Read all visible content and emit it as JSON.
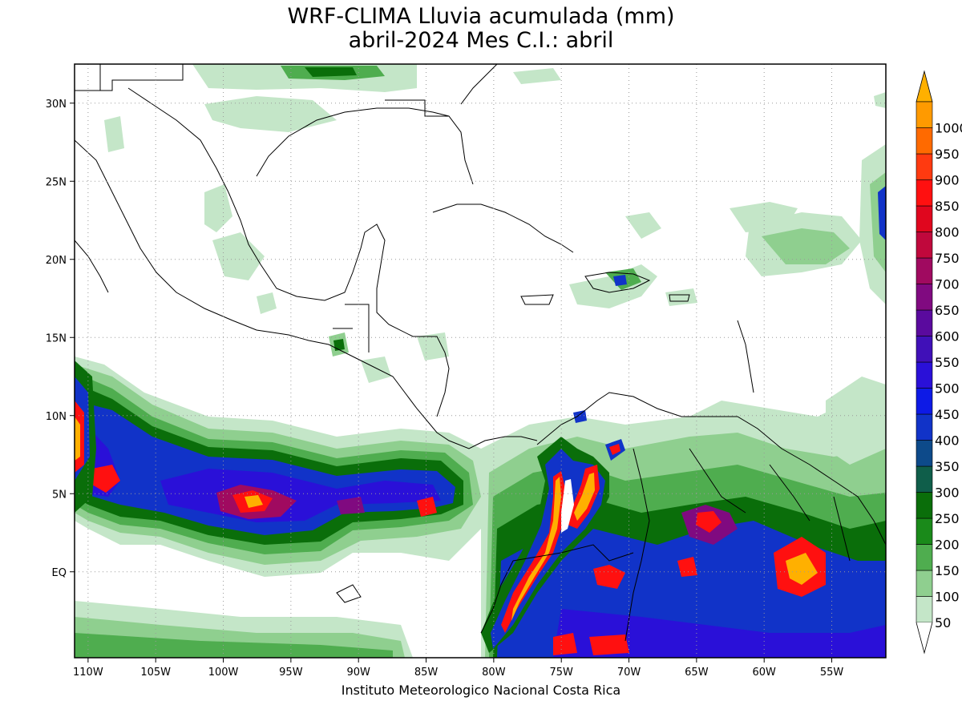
{
  "title": {
    "line1": "WRF-CLIMA Lluvia acumulada (mm)",
    "line2": "abril-2024 Mes C.I.: abril"
  },
  "credit": "Instituto Meteorologico Nacional Costa Rica",
  "map": {
    "lon_range": [
      -111,
      -51
    ],
    "lat_range": [
      -5.5,
      32.5
    ],
    "x_ticks": [
      {
        "lon": -110,
        "label": "110W"
      },
      {
        "lon": -105,
        "label": "105W"
      },
      {
        "lon": -100,
        "label": "100W"
      },
      {
        "lon": -95,
        "label": "95W"
      },
      {
        "lon": -90,
        "label": "90W"
      },
      {
        "lon": -85,
        "label": "85W"
      },
      {
        "lon": -80,
        "label": "80W"
      },
      {
        "lon": -75,
        "label": "75W"
      },
      {
        "lon": -70,
        "label": "70W"
      },
      {
        "lon": -65,
        "label": "65W"
      },
      {
        "lon": -60,
        "label": "60W"
      },
      {
        "lon": -55,
        "label": "55W"
      }
    ],
    "y_ticks": [
      {
        "lat": 30,
        "label": "30N"
      },
      {
        "lat": 25,
        "label": "25N"
      },
      {
        "lat": 20,
        "label": "20N"
      },
      {
        "lat": 15,
        "label": "15N"
      },
      {
        "lat": 10,
        "label": "10N"
      },
      {
        "lat": 5,
        "label": "5N"
      },
      {
        "lat": 0,
        "label": "EQ"
      }
    ],
    "grid": "dotted"
  },
  "colorbar": {
    "levels": [
      {
        "label": "50",
        "color": "#c4e6c8"
      },
      {
        "label": "100",
        "color": "#8fcf8f"
      },
      {
        "label": "150",
        "color": "#4fad4f"
      },
      {
        "label": "200",
        "color": "#1a8a1a"
      },
      {
        "label": "250",
        "color": "#0a6e0a"
      },
      {
        "label": "300",
        "color": "#0f5e4a"
      },
      {
        "label": "350",
        "color": "#0d4a8a"
      },
      {
        "label": "400",
        "color": "#1133c8"
      },
      {
        "label": "450",
        "color": "#0d1ae6"
      },
      {
        "label": "500",
        "color": "#2a10d8"
      },
      {
        "label": "550",
        "color": "#4010b8"
      },
      {
        "label": "600",
        "color": "#5a0a9e"
      },
      {
        "label": "650",
        "color": "#800a80"
      },
      {
        "label": "700",
        "color": "#a00a60"
      },
      {
        "label": "750",
        "color": "#c0083c"
      },
      {
        "label": "800",
        "color": "#e0061e"
      },
      {
        "label": "850",
        "color": "#ff1010"
      },
      {
        "label": "900",
        "color": "#ff3a10"
      },
      {
        "label": "950",
        "color": "#ff6a00"
      },
      {
        "label": "1000",
        "color": "#ff9a00"
      }
    ],
    "over_color": "#ffb000"
  }
}
